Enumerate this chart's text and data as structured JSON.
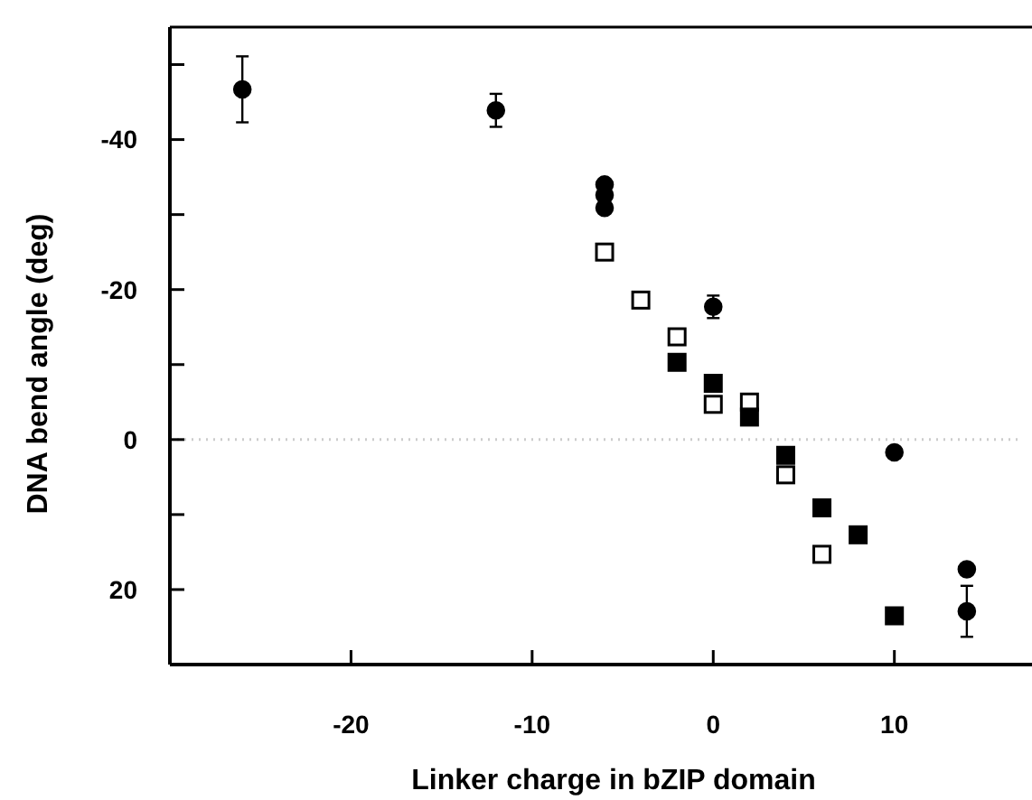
{
  "chart_data": {
    "type": "scatter",
    "xlabel": "Linker charge in bZIP domain",
    "ylabel": "DNA bend angle (deg)",
    "xlim": [
      -30,
      17
    ],
    "xticks": [
      -20,
      -10,
      0,
      10
    ],
    "ylim": [
      30,
      -55
    ],
    "yticks": [
      {
        "value": -50,
        "label": null
      },
      -40,
      {
        "value": -30,
        "label": null
      },
      -20,
      {
        "value": -10,
        "label": null
      },
      0,
      {
        "value": 10,
        "label": null
      },
      20
    ],
    "ref_lines": [
      {
        "axis": "y",
        "value": 0,
        "color": "#cccccc",
        "line_style": "dotted"
      }
    ],
    "series": [
      {
        "color": "#000000",
        "marker": "circle",
        "x": [
          -26,
          -12,
          -6,
          -6,
          -6,
          0,
          10,
          14,
          14
        ],
        "values": [
          -46.7,
          -43.9,
          -34,
          -32.6,
          -30.9,
          -17.7,
          1.7,
          17.3,
          22.9
        ],
        "errors": [
          4.4,
          2.2,
          null,
          null,
          null,
          1.5,
          null,
          null,
          3.4
        ]
      },
      {
        "color": "#ffffff",
        "marker": "square",
        "x": [
          -6,
          -4,
          -2,
          0,
          2,
          4,
          6
        ],
        "values": [
          -25,
          -18.6,
          -13.7,
          -4.7,
          -5,
          4.7,
          15.3
        ]
      },
      {
        "color": "#000000",
        "marker": "square",
        "x": [
          -2,
          0,
          2,
          4,
          6,
          8,
          10
        ],
        "values": [
          -10.3,
          -7.5,
          -3,
          2.1,
          9.1,
          12.7,
          23.5
        ]
      }
    ]
  }
}
